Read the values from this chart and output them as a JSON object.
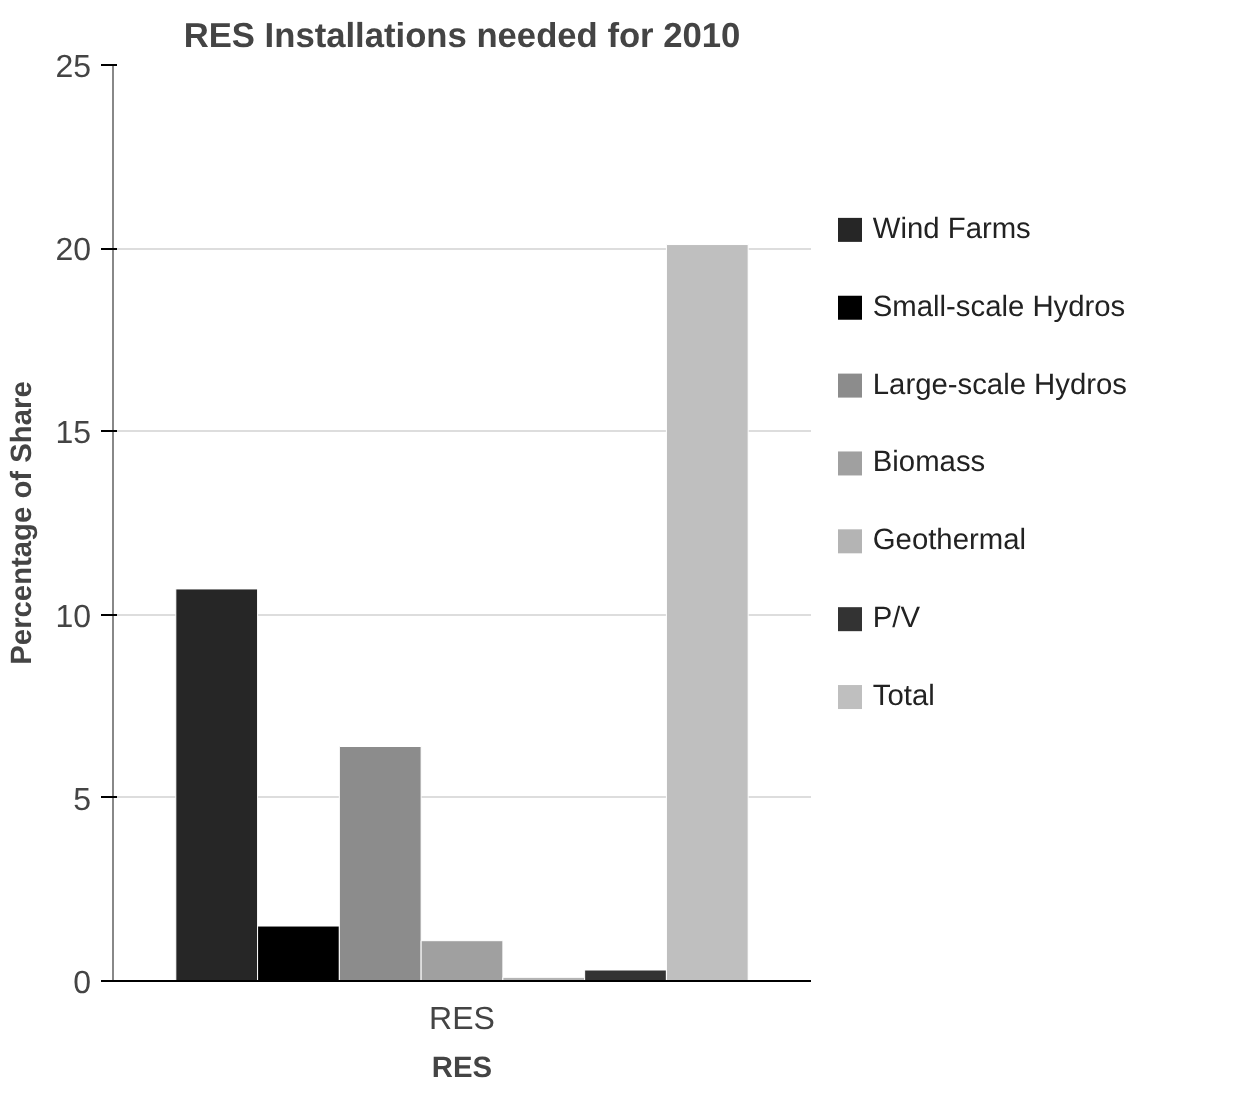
{
  "chart_data": {
    "type": "bar",
    "title": "RES Installations needed for 2010",
    "xlabel": "RES",
    "ylabel": "Percentage of Share",
    "categories": [
      "RES"
    ],
    "series": [
      {
        "name": "Wind Farms",
        "color": "#262626",
        "values": [
          10.7
        ]
      },
      {
        "name": "Small-scale Hydros",
        "color": "#000000",
        "values": [
          1.5
        ]
      },
      {
        "name": "Large-scale Hydros",
        "color": "#8c8c8c",
        "values": [
          6.4
        ]
      },
      {
        "name": "Biomass",
        "color": "#a0a0a0",
        "values": [
          1.1
        ]
      },
      {
        "name": "Geothermal",
        "color": "#b4b4b4",
        "values": [
          0.1
        ]
      },
      {
        "name": "P/V",
        "color": "#333333",
        "values": [
          0.3
        ]
      },
      {
        "name": "Total",
        "color": "#bfbfbf",
        "values": [
          20.1
        ]
      }
    ],
    "ylim": [
      0,
      25
    ],
    "yticks": [
      0,
      5,
      10,
      15,
      20,
      25
    ],
    "grid": "y",
    "legend": "right"
  }
}
